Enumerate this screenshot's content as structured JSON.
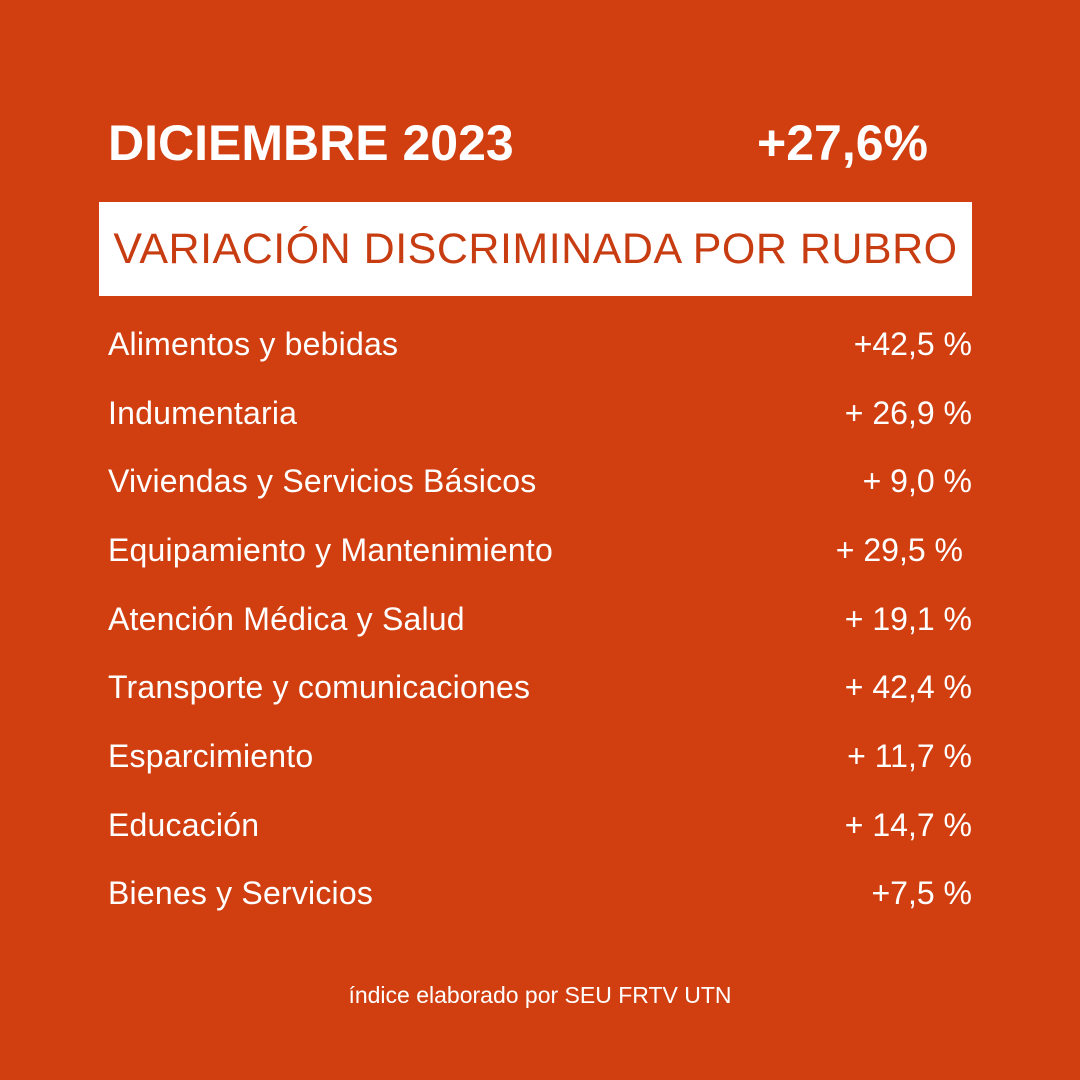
{
  "header": {
    "month": "DICIEMBRE 2023",
    "total": "+27,6%"
  },
  "banner": {
    "title": "VARIACIÓN DISCRIMINADA POR RUBRO"
  },
  "rows": [
    {
      "label": "Alimentos y bebidas",
      "value": "+42,5 %"
    },
    {
      "label": "Indumentaria",
      "value": "+ 26,9 %"
    },
    {
      "label": "Viviendas y Servicios Básicos",
      "value": "+ 9,0 %"
    },
    {
      "label": "Equipamiento y Mantenimiento",
      "value": "+ 29,5 %"
    },
    {
      "label": "Atención Médica y Salud",
      "value": "+ 19,1 %"
    },
    {
      "label": "Transporte y comunicaciones",
      "value": "+ 42,4 %"
    },
    {
      "label": "Esparcimiento",
      "value": "+ 11,7 %"
    },
    {
      "label": "Educación",
      "value": "+ 14,7 %"
    },
    {
      "label": "Bienes y Servicios",
      "value": "+7,5 %"
    }
  ],
  "footer": {
    "credit": "índice elaborado por SEU FRTV UTN"
  },
  "colors": {
    "background": "#d13f11",
    "banner_background": "#ffffff",
    "banner_text": "#c83c12",
    "text": "#ffffff"
  }
}
